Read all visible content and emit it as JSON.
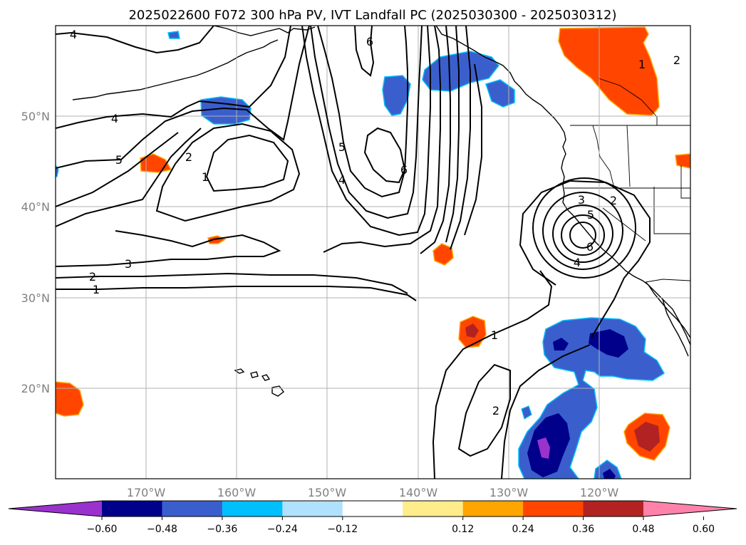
{
  "title": "2025022600 F072 300 hPa PV, IVT Landfall PC (2025030300 - 2025030312)",
  "map": {
    "lon_labels": [
      "170°W",
      "160°W",
      "150°W",
      "140°W",
      "130°W",
      "120°W"
    ],
    "lat_labels": [
      "50°N",
      "40°N",
      "30°N",
      "20°N"
    ],
    "contour_labels": [
      "4",
      "4",
      "5",
      "6",
      "5",
      "4",
      "6",
      "2",
      "1",
      "3",
      "2",
      "1",
      "3",
      "2",
      "5",
      "6",
      "4",
      "1",
      "2",
      "1",
      "2"
    ]
  },
  "colorbar": {
    "colors": [
      "#9a32cd",
      "#00008b",
      "#3a5fcd",
      "#00bfff",
      "#b0e2ff",
      "#ffffff",
      "#ffec8b",
      "#ffa500",
      "#ff4500",
      "#b22222",
      "#ff82ab"
    ],
    "tick_labels": [
      "−0.60",
      "−0.48",
      "−0.36",
      "−0.24",
      "−0.12",
      "0.12",
      "0.24",
      "0.36",
      "0.48",
      "0.60"
    ]
  }
}
